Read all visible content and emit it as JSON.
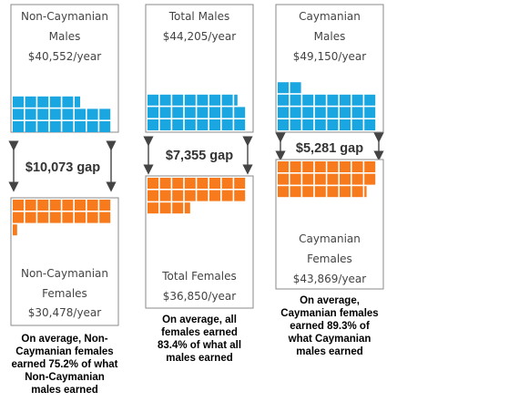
{
  "colors": {
    "male": "#1aa7e1",
    "female": "#f77a1c",
    "border": "#8a8a8a"
  },
  "chart_data": {
    "type": "waffle",
    "units": "dollars per year",
    "panels": [
      {
        "id": "non-caymanian",
        "males": {
          "label_lines": [
            "Non-Caymanian",
            "Males"
          ],
          "salary": 40552,
          "salary_text": "$40,552/year",
          "squares": 21.5
        },
        "females": {
          "label_lines": [
            "Non-Caymanian",
            "Females"
          ],
          "salary": 30478,
          "salary_text": "$30,478/year",
          "squares": 16.4
        },
        "gap": 10073,
        "gap_text": "$10,073 gap",
        "note_lines": [
          "On average, Non-",
          "Caymanian females",
          "earned 75.2% of what",
          "Non-Caymanian",
          "males earned"
        ]
      },
      {
        "id": "total",
        "males": {
          "label_lines": [
            "Total Males"
          ],
          "salary": 44205,
          "salary_text": "$44,205/year",
          "squares": 23.3
        },
        "females": {
          "label_lines": [
            "Total Females"
          ],
          "salary": 36850,
          "salary_text": "$36,850/year",
          "squares": 19.5
        },
        "gap": 7355,
        "gap_text": "$7,355 gap",
        "note_lines": [
          "On average, all",
          "females earned",
          "83.4% of what all",
          "males earned"
        ]
      },
      {
        "id": "caymanian",
        "males": {
          "label_lines": [
            "Caymanian",
            "Males"
          ],
          "salary": 49150,
          "salary_text": "$49,150/year",
          "squares": 26
        },
        "females": {
          "label_lines": [
            "Caymanian",
            "Females"
          ],
          "salary": 43869,
          "salary_text": "$43,869/year",
          "squares": 23.2
        },
        "gap": 5281,
        "gap_text": "$5,281 gap",
        "note_lines": [
          "On average,",
          "Caymanian females",
          "earned 89.3% of",
          "what Caymanian",
          "males earned"
        ]
      }
    ]
  }
}
